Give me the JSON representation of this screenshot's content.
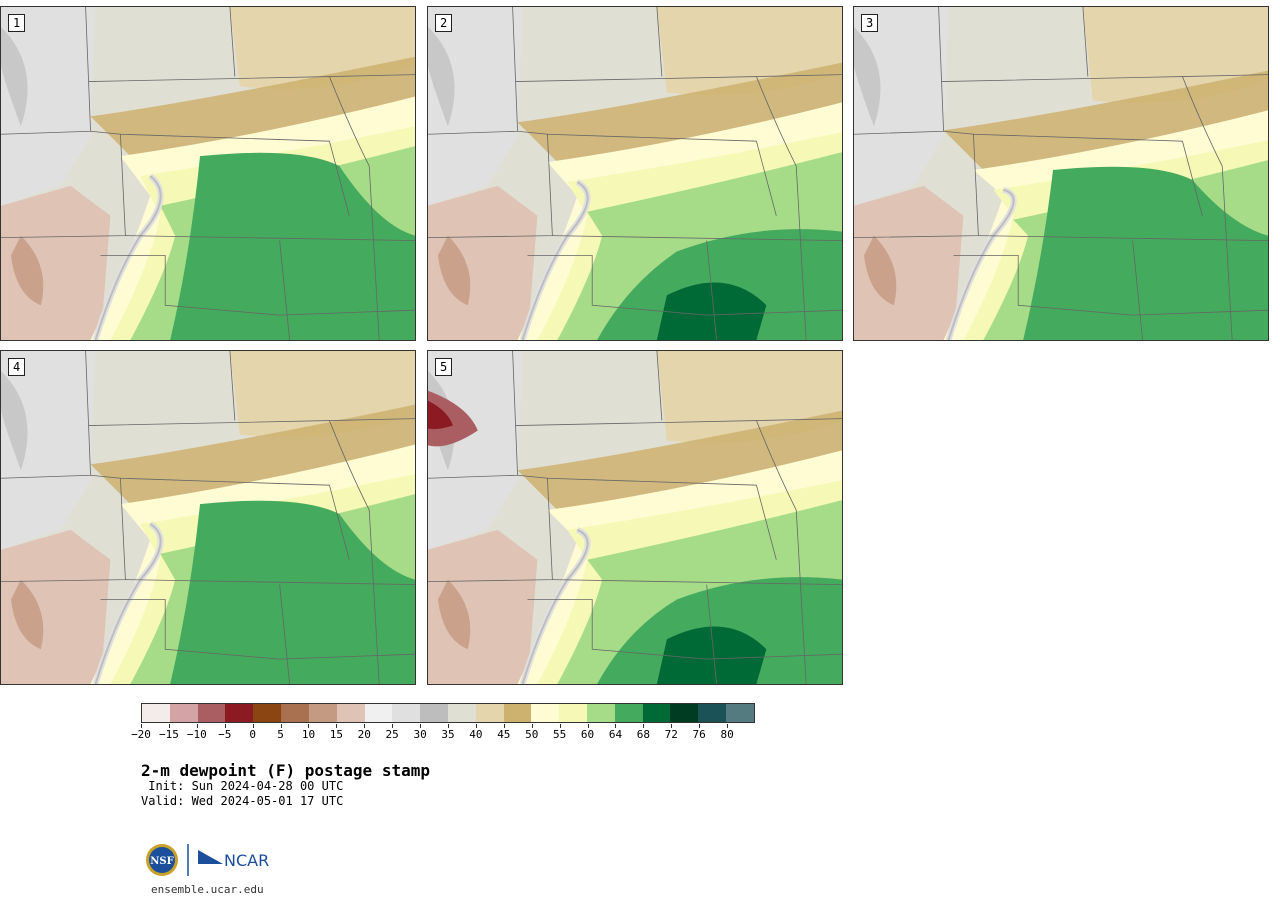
{
  "panels": [
    {
      "label": "1",
      "variant": 0
    },
    {
      "label": "2",
      "variant": 1
    },
    {
      "label": "3",
      "variant": 2
    },
    {
      "label": "4",
      "variant": 3
    },
    {
      "label": "5",
      "variant": 4
    }
  ],
  "colorbar": {
    "colors": [
      "#f4eceb",
      "#d4a3a6",
      "#ab5e62",
      "#8c1a22",
      "#8b4513",
      "#a9714f",
      "#c49a82",
      "#dfc3b4",
      "#f0f0f0",
      "#e0e0e0",
      "#bdbdbd",
      "#e0dfd4",
      "#e5d5ad",
      "#cdb26f",
      "#fffbd3",
      "#f6f8b5",
      "#a6dc87",
      "#44aa5e",
      "#006a37",
      "#003c22",
      "#1b5257",
      "#537b80"
    ],
    "tick_labels": [
      "−20",
      "−15",
      "−10",
      "−5",
      "0",
      "5",
      "10",
      "15",
      "20",
      "25",
      "30",
      "35",
      "40",
      "45",
      "50",
      "55",
      "60",
      "64",
      "68",
      "72",
      "76",
      "80"
    ]
  },
  "title": "2-m dewpoint (F) postage stamp",
  "init": " Init: Sun 2024-04-28 00 UTC",
  "valid": "Valid: Wed 2024-05-01 17 UTC",
  "logo": {
    "nsf": "NSF",
    "ncar": "NCAR"
  },
  "site": "ensemble.ucar.edu"
}
